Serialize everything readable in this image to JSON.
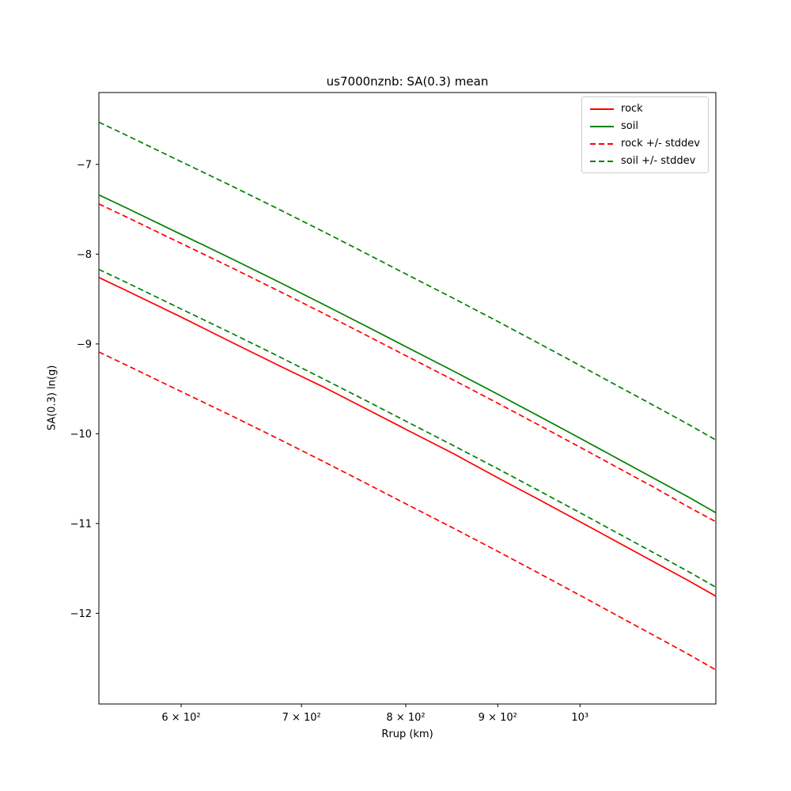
{
  "chart_data": {
    "type": "line",
    "title": "us7000nznb: SA(0.3) mean",
    "xlabel": "Rrup (km)",
    "ylabel": "SA(0.3) ln(g)",
    "x_scale": "log",
    "xlim": [
      540,
      1190
    ],
    "ylim": [
      -13.01,
      -6.2
    ],
    "grid": false,
    "legend_position": "upper right",
    "x_ticks": [
      {
        "value": 600,
        "label": "6 × 10²"
      },
      {
        "value": 700,
        "label": "7 × 10²"
      },
      {
        "value": 800,
        "label": "8 × 10²"
      },
      {
        "value": 900,
        "label": "9 × 10²"
      },
      {
        "value": 1000,
        "label": "10³"
      }
    ],
    "y_ticks": [
      {
        "value": -7,
        "label": "−7"
      },
      {
        "value": -8,
        "label": "−8"
      },
      {
        "value": -9,
        "label": "−9"
      },
      {
        "value": -10,
        "label": "−10"
      },
      {
        "value": -11,
        "label": "−11"
      },
      {
        "value": -12,
        "label": "−12"
      }
    ],
    "x": [
      540,
      560,
      600,
      640,
      680,
      720,
      760,
      800,
      850,
      900,
      950,
      1000,
      1050,
      1100,
      1150,
      1190
    ],
    "series": [
      {
        "name": "rock",
        "color": "#ff0000",
        "dash": false,
        "values": [
          -8.26,
          -8.41,
          -8.7,
          -8.98,
          -9.24,
          -9.48,
          -9.72,
          -9.95,
          -10.22,
          -10.49,
          -10.74,
          -10.98,
          -11.21,
          -11.43,
          -11.64,
          -11.81
        ]
      },
      {
        "name": "soil",
        "color": "#008000",
        "dash": false,
        "values": [
          -7.34,
          -7.49,
          -7.78,
          -8.05,
          -8.31,
          -8.56,
          -8.8,
          -9.03,
          -9.3,
          -9.56,
          -9.81,
          -10.05,
          -10.28,
          -10.5,
          -10.71,
          -10.88
        ]
      },
      {
        "name": "rock +/- stddev",
        "color": "#ff0000",
        "dash": true,
        "values": [
          -7.44,
          -7.59,
          -7.88,
          -8.15,
          -8.41,
          -8.66,
          -8.9,
          -9.13,
          -9.4,
          -9.66,
          -9.91,
          -10.15,
          -10.38,
          -10.6,
          -10.82,
          -10.98
        ],
        "values2": [
          -9.09,
          -9.24,
          -9.53,
          -9.8,
          -10.06,
          -10.31,
          -10.55,
          -10.78,
          -11.05,
          -11.31,
          -11.56,
          -11.8,
          -12.03,
          -12.25,
          -12.46,
          -12.63
        ]
      },
      {
        "name": "soil +/- stddev",
        "color": "#008000",
        "dash": true,
        "values": [
          -6.53,
          -6.68,
          -6.97,
          -7.24,
          -7.5,
          -7.75,
          -7.99,
          -8.22,
          -8.49,
          -8.75,
          -9.0,
          -9.24,
          -9.47,
          -9.69,
          -9.9,
          -10.07
        ],
        "values2": [
          -8.17,
          -8.32,
          -8.61,
          -8.88,
          -9.14,
          -9.39,
          -9.63,
          -9.86,
          -10.13,
          -10.39,
          -10.64,
          -10.88,
          -11.11,
          -11.33,
          -11.54,
          -11.71
        ]
      }
    ]
  }
}
